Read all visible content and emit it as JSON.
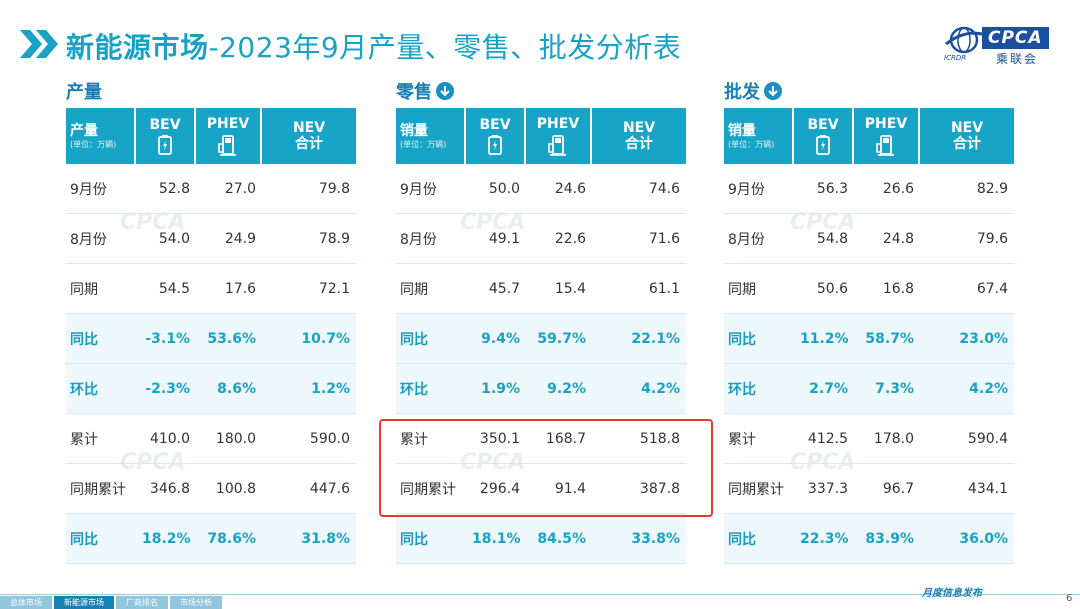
{
  "header": {
    "title_main": "新能源市场",
    "title_sub": "-2023年9月产量、零售、批发分析表"
  },
  "logo": {
    "brand": "CPCA",
    "chinese": "乘联会",
    "english": "ICRDR"
  },
  "columns": {
    "bev": "BEV",
    "phev": "PHEV",
    "nev_line1": "NEV",
    "nev_line2": "合计",
    "unit": "(单位：万辆)"
  },
  "sections": [
    {
      "title": "产量",
      "header_label": "产量",
      "rows": [
        {
          "label": "9月份",
          "bev": "52.8",
          "phev": "27.0",
          "nev": "79.8",
          "pct": false
        },
        {
          "label": "8月份",
          "bev": "54.0",
          "phev": "24.9",
          "nev": "78.9",
          "pct": false
        },
        {
          "label": "同期",
          "bev": "54.5",
          "phev": "17.6",
          "nev": "72.1",
          "pct": false
        },
        {
          "label": "同比",
          "bev": "-3.1%",
          "phev": "53.6%",
          "nev": "10.7%",
          "pct": true
        },
        {
          "label": "环比",
          "bev": "-2.3%",
          "phev": "8.6%",
          "nev": "1.2%",
          "pct": true
        },
        {
          "label": "累计",
          "bev": "410.0",
          "phev": "180.0",
          "nev": "590.0",
          "pct": false
        },
        {
          "label": "同期累计",
          "bev": "346.8",
          "phev": "100.8",
          "nev": "447.6",
          "pct": false
        },
        {
          "label": "同比",
          "bev": "18.2%",
          "phev": "78.6%",
          "nev": "31.8%",
          "pct": true
        }
      ]
    },
    {
      "title": "零售",
      "header_label": "销量",
      "rows": [
        {
          "label": "9月份",
          "bev": "50.0",
          "phev": "24.6",
          "nev": "74.6",
          "pct": false
        },
        {
          "label": "8月份",
          "bev": "49.1",
          "phev": "22.6",
          "nev": "71.6",
          "pct": false
        },
        {
          "label": "同期",
          "bev": "45.7",
          "phev": "15.4",
          "nev": "61.1",
          "pct": false
        },
        {
          "label": "同比",
          "bev": "9.4%",
          "phev": "59.7%",
          "nev": "22.1%",
          "pct": true
        },
        {
          "label": "环比",
          "bev": "1.9%",
          "phev": "9.2%",
          "nev": "4.2%",
          "pct": true
        },
        {
          "label": "累计",
          "bev": "350.1",
          "phev": "168.7",
          "nev": "518.8",
          "pct": false
        },
        {
          "label": "同期累计",
          "bev": "296.4",
          "phev": "91.4",
          "nev": "387.8",
          "pct": false
        },
        {
          "label": "同比",
          "bev": "18.1%",
          "phev": "84.5%",
          "nev": "33.8%",
          "pct": true
        }
      ]
    },
    {
      "title": "批发",
      "header_label": "销量",
      "rows": [
        {
          "label": "9月份",
          "bev": "56.3",
          "phev": "26.6",
          "nev": "82.9",
          "pct": false
        },
        {
          "label": "8月份",
          "bev": "54.8",
          "phev": "24.8",
          "nev": "79.6",
          "pct": false
        },
        {
          "label": "同期",
          "bev": "50.6",
          "phev": "16.8",
          "nev": "67.4",
          "pct": false
        },
        {
          "label": "同比",
          "bev": "11.2%",
          "phev": "58.7%",
          "nev": "23.0%",
          "pct": true
        },
        {
          "label": "环比",
          "bev": "2.7%",
          "phev": "7.3%",
          "nev": "4.2%",
          "pct": true
        },
        {
          "label": "累计",
          "bev": "412.5",
          "phev": "178.0",
          "nev": "590.4",
          "pct": false
        },
        {
          "label": "同期累计",
          "bev": "337.3",
          "phev": "96.7",
          "nev": "434.1",
          "pct": false
        },
        {
          "label": "同比",
          "bev": "22.3%",
          "phev": "83.9%",
          "nev": "36.0%",
          "pct": true
        }
      ]
    }
  ],
  "footer": {
    "tabs": [
      "总体市场",
      "新能源市场",
      "厂商排名",
      "市场分析"
    ],
    "active_tab": 1,
    "monthly": "月度信息发布",
    "page": "6"
  },
  "colors": {
    "accent": "#17a4c6",
    "highlight": "#e53a2e",
    "brand": "#1b4fa0"
  }
}
